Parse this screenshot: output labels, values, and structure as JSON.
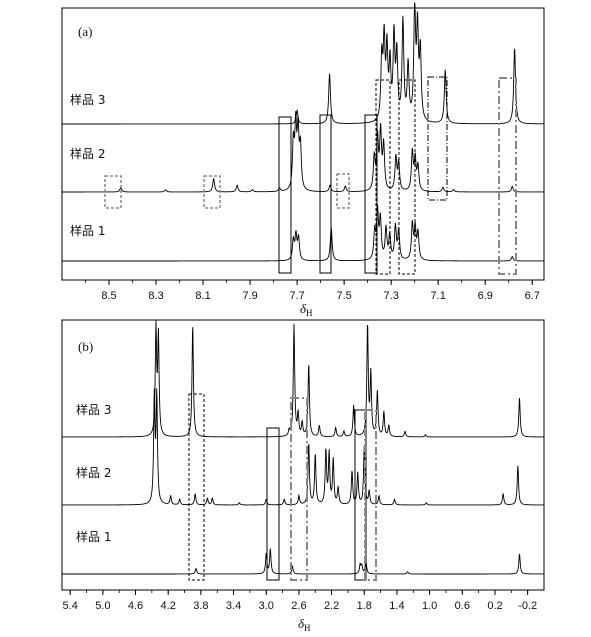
{
  "chart_data": [
    {
      "type": "line",
      "panel_label": "(a)",
      "xlabel": "δH",
      "xlim": [
        8.7,
        6.65
      ],
      "x_reversed": true,
      "xticks": [
        8.5,
        8.3,
        8.1,
        7.9,
        7.7,
        7.5,
        7.3,
        7.1,
        6.9,
        6.7
      ],
      "series": [
        {
          "name": "样品 3",
          "peaks": [
            {
              "x": 7.7,
              "h": 0.12
            },
            {
              "x": 7.562,
              "h": 0.45
            },
            {
              "x": 7.34,
              "h": 0.55
            },
            {
              "x": 7.33,
              "h": 0.7
            },
            {
              "x": 7.318,
              "h": 0.62
            },
            {
              "x": 7.305,
              "h": 0.5
            },
            {
              "x": 7.288,
              "h": 0.75
            },
            {
              "x": 7.276,
              "h": 0.58
            },
            {
              "x": 7.25,
              "h": 0.9
            },
            {
              "x": 7.228,
              "h": 0.5
            },
            {
              "x": 7.2,
              "h": 1.0
            },
            {
              "x": 7.188,
              "h": 0.8
            },
            {
              "x": 7.176,
              "h": 0.62
            },
            {
              "x": 7.07,
              "h": 0.48
            },
            {
              "x": 6.775,
              "h": 0.68
            }
          ]
        },
        {
          "name": "样品 2",
          "peaks": [
            {
              "x": 8.45,
              "h": 0.04
            },
            {
              "x": 8.26,
              "h": 0.02
            },
            {
              "x": 8.055,
              "h": 0.12
            },
            {
              "x": 7.955,
              "h": 0.06
            },
            {
              "x": 7.89,
              "h": 0.02
            },
            {
              "x": 7.775,
              "h": 0.03
            },
            {
              "x": 7.716,
              "h": 0.42
            },
            {
              "x": 7.706,
              "h": 0.55
            },
            {
              "x": 7.696,
              "h": 0.5
            },
            {
              "x": 7.686,
              "h": 0.38
            },
            {
              "x": 7.56,
              "h": 0.06
            },
            {
              "x": 7.495,
              "h": 0.05
            },
            {
              "x": 7.372,
              "h": 0.3
            },
            {
              "x": 7.358,
              "h": 0.45
            },
            {
              "x": 7.345,
              "h": 0.52
            },
            {
              "x": 7.332,
              "h": 0.4
            },
            {
              "x": 7.28,
              "h": 0.3
            },
            {
              "x": 7.268,
              "h": 0.25
            },
            {
              "x": 7.21,
              "h": 0.35
            },
            {
              "x": 7.198,
              "h": 0.28
            },
            {
              "x": 7.186,
              "h": 0.22
            },
            {
              "x": 7.08,
              "h": 0.04
            },
            {
              "x": 7.035,
              "h": 0.02
            },
            {
              "x": 6.785,
              "h": 0.05
            }
          ]
        },
        {
          "name": "样品 1",
          "peaks": [
            {
              "x": 7.716,
              "h": 0.18
            },
            {
              "x": 7.705,
              "h": 0.22
            },
            {
              "x": 7.694,
              "h": 0.2
            },
            {
              "x": 7.555,
              "h": 0.3
            },
            {
              "x": 7.37,
              "h": 0.25
            },
            {
              "x": 7.358,
              "h": 0.42
            },
            {
              "x": 7.346,
              "h": 0.36
            },
            {
              "x": 7.322,
              "h": 0.28
            },
            {
              "x": 7.306,
              "h": 0.22
            },
            {
              "x": 7.282,
              "h": 0.3
            },
            {
              "x": 7.268,
              "h": 0.26
            },
            {
              "x": 7.21,
              "h": 0.32
            },
            {
              "x": 7.198,
              "h": 0.28
            },
            {
              "x": 7.186,
              "h": 0.24
            },
            {
              "x": 6.785,
              "h": 0.04
            }
          ]
        }
      ]
    },
    {
      "type": "line",
      "panel_label": "(b)",
      "xlabel": "δH",
      "xlim": [
        5.5,
        -0.4
      ],
      "x_reversed": true,
      "xticks": [
        5.4,
        5.0,
        4.6,
        4.2,
        3.8,
        3.4,
        3.0,
        2.6,
        2.2,
        1.8,
        1.4,
        1.0,
        0.6,
        0.2,
        -0.2
      ],
      "series": [
        {
          "name": "样品 3",
          "peaks": [
            {
              "x": 4.35,
              "h": 0.95
            },
            {
              "x": 4.32,
              "h": 0.88
            },
            {
              "x": 3.9,
              "h": 1.0
            },
            {
              "x": 2.72,
              "h": 0.05
            },
            {
              "x": 2.66,
              "h": 1.0
            },
            {
              "x": 2.61,
              "h": 0.2
            },
            {
              "x": 2.56,
              "h": 0.12
            },
            {
              "x": 2.48,
              "h": 0.65
            },
            {
              "x": 2.35,
              "h": 0.1
            },
            {
              "x": 2.15,
              "h": 0.08
            },
            {
              "x": 2.05,
              "h": 0.05
            },
            {
              "x": 1.93,
              "h": 0.28
            },
            {
              "x": 1.76,
              "h": 1.0
            },
            {
              "x": 1.72,
              "h": 0.55
            },
            {
              "x": 1.64,
              "h": 0.4
            },
            {
              "x": 1.56,
              "h": 0.22
            },
            {
              "x": 1.5,
              "h": 0.1
            },
            {
              "x": 1.3,
              "h": 0.05
            },
            {
              "x": 1.05,
              "h": 0.02
            },
            {
              "x": -0.1,
              "h": 0.35
            }
          ]
        },
        {
          "name": "样品 2",
          "peaks": [
            {
              "x": 4.37,
              "h": 0.95
            },
            {
              "x": 4.34,
              "h": 0.95
            },
            {
              "x": 4.17,
              "h": 0.08
            },
            {
              "x": 4.06,
              "h": 0.05
            },
            {
              "x": 3.87,
              "h": 0.1
            },
            {
              "x": 3.72,
              "h": 0.06
            },
            {
              "x": 3.66,
              "h": 0.06
            },
            {
              "x": 3.33,
              "h": 0.02
            },
            {
              "x": 3.0,
              "h": 0.05
            },
            {
              "x": 2.78,
              "h": 0.05
            },
            {
              "x": 2.6,
              "h": 0.08
            },
            {
              "x": 2.48,
              "h": 0.55
            },
            {
              "x": 2.4,
              "h": 0.45
            },
            {
              "x": 2.27,
              "h": 0.48
            },
            {
              "x": 2.23,
              "h": 0.45
            },
            {
              "x": 2.18,
              "h": 0.4
            },
            {
              "x": 2.12,
              "h": 0.15
            },
            {
              "x": 1.95,
              "h": 0.3
            },
            {
              "x": 1.88,
              "h": 0.28
            },
            {
              "x": 1.8,
              "h": 0.52
            },
            {
              "x": 1.74,
              "h": 0.12
            },
            {
              "x": 1.62,
              "h": 0.08
            },
            {
              "x": 1.43,
              "h": 0.05
            },
            {
              "x": 1.04,
              "h": 0.02
            },
            {
              "x": 0.1,
              "h": 0.1
            },
            {
              "x": -0.08,
              "h": 0.35
            }
          ]
        },
        {
          "name": "样品 1",
          "peaks": [
            {
              "x": 3.86,
              "h": 0.05
            },
            {
              "x": 3.0,
              "h": 0.18
            },
            {
              "x": 2.95,
              "h": 0.22
            },
            {
              "x": 2.68,
              "h": 0.07
            },
            {
              "x": 1.85,
              "h": 0.08
            },
            {
              "x": 1.83,
              "h": 0.07
            },
            {
              "x": 1.78,
              "h": 0.12
            },
            {
              "x": 1.27,
              "h": 0.02
            },
            {
              "x": -0.1,
              "h": 0.18
            }
          ]
        }
      ]
    }
  ]
}
